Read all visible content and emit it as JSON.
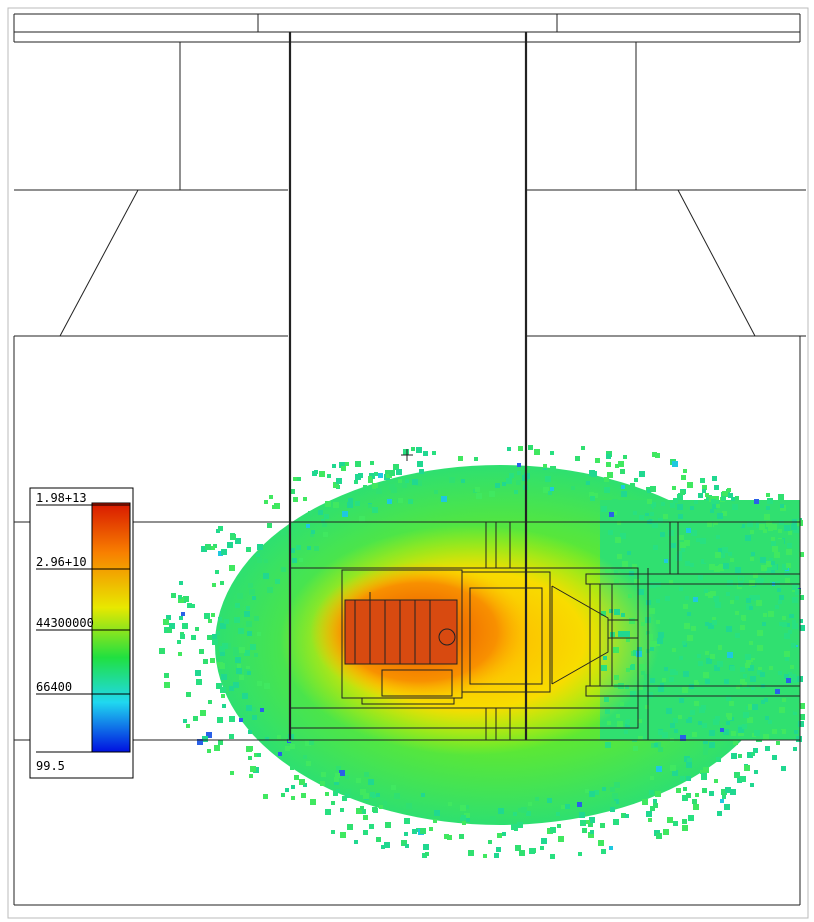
{
  "legend": {
    "labels": [
      "1.98+13",
      "2.96+10",
      "44300000",
      "66400",
      "99.5"
    ]
  }
}
